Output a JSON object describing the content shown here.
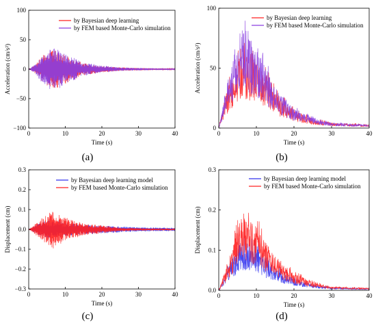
{
  "colors": {
    "red": "#ff2020",
    "blue": "#3333ee",
    "purple": "#8a3fe0"
  },
  "chart_data": [
    {
      "type": "line",
      "caption": "(a)",
      "xlabel": "Time (s)",
      "ylabel": "Acceleration (cm/s²)",
      "xlim": [
        0,
        40
      ],
      "ylim": [
        -100,
        100
      ],
      "xticks": [
        "0",
        "10",
        "20",
        "30",
        "40"
      ],
      "yticks": [
        "100",
        "50",
        "0",
        "−50",
        "−100"
      ],
      "legend_position": "top-right",
      "series": [
        {
          "name": "by Bayesian deep learning",
          "color": "red",
          "x": [
            0,
            2,
            4,
            6,
            7,
            8,
            10,
            12,
            15,
            20,
            25,
            30,
            40
          ],
          "amplitude": [
            0,
            8,
            24,
            32,
            34,
            30,
            25,
            18,
            10,
            5,
            3,
            2,
            1
          ]
        },
        {
          "name": "by FEM based Monte-Carlo simulation",
          "color": "purple",
          "x": [
            0,
            2,
            4,
            6,
            7,
            8,
            10,
            12,
            15,
            20,
            25,
            30,
            40
          ],
          "amplitude": [
            0,
            9,
            26,
            35,
            38,
            33,
            27,
            20,
            11,
            6,
            3,
            2,
            1
          ]
        }
      ]
    },
    {
      "type": "line",
      "caption": "(b)",
      "xlabel": "Time (s)",
      "ylabel": "Acceleration (cm/s²)",
      "xlim": [
        0,
        40
      ],
      "ylim": [
        0,
        100
      ],
      "xticks": [
        "0",
        "10",
        "20",
        "30",
        "40"
      ],
      "yticks": [
        "100",
        "50",
        "0"
      ],
      "legend_position": "top-right",
      "series": [
        {
          "name": "by Bayesian deep learning",
          "color": "red",
          "x": [
            0,
            2,
            4,
            6,
            8,
            10,
            12,
            14,
            16,
            20,
            25,
            30,
            40
          ],
          "y": [
            0,
            20,
            33,
            45,
            42,
            38,
            33,
            25,
            18,
            10,
            5,
            3,
            2
          ]
        },
        {
          "name": "by FEM based Monte-Carlo simulation",
          "color": "purple",
          "x": [
            0,
            2,
            4,
            6,
            8,
            10,
            12,
            14,
            16,
            20,
            25,
            30,
            40
          ],
          "y": [
            0,
            24,
            40,
            60,
            53,
            45,
            38,
            28,
            20,
            11,
            6,
            3,
            2
          ]
        }
      ]
    },
    {
      "type": "line",
      "caption": "(c)",
      "xlabel": "Time (s)",
      "ylabel": "Displacement (cm)",
      "xlim": [
        0,
        40
      ],
      "ylim": [
        -0.3,
        0.3
      ],
      "xticks": [
        "0",
        "10",
        "20",
        "30",
        "40"
      ],
      "yticks": [
        "0.3",
        "0.2",
        "0.1",
        "0.0",
        "−0.1",
        "−0.2",
        "−0.3"
      ],
      "legend_position": "top-right",
      "series": [
        {
          "name": "by Bayesian deep learning model",
          "color": "blue",
          "x": [
            0,
            2,
            4,
            6,
            8,
            10,
            12,
            15,
            20,
            25,
            30,
            40
          ],
          "amplitude": [
            0,
            0.02,
            0.04,
            0.045,
            0.04,
            0.035,
            0.03,
            0.025,
            0.02,
            0.015,
            0.01,
            0.008
          ]
        },
        {
          "name": "by FEM based Monte-Carlo simulation",
          "color": "red",
          "x": [
            0,
            2,
            4,
            6,
            7,
            8,
            10,
            12,
            15,
            20,
            25,
            30,
            40
          ],
          "amplitude": [
            0,
            0.03,
            0.06,
            0.09,
            0.1,
            0.08,
            0.06,
            0.045,
            0.03,
            0.02,
            0.01,
            0.006,
            0.004
          ]
        }
      ]
    },
    {
      "type": "line",
      "caption": "(d)",
      "xlabel": "Time (s)",
      "ylabel": "Displacement (cm)",
      "xlim": [
        0,
        40
      ],
      "ylim": [
        0,
        0.3
      ],
      "xticks": [
        "0",
        "10",
        "20",
        "30",
        "40"
      ],
      "yticks": [
        "0.3",
        "0.2",
        "0.1",
        "0.0"
      ],
      "legend_position": "top-right",
      "series": [
        {
          "name": "by Bayesian deep learning model",
          "color": "blue",
          "x": [
            0,
            2,
            4,
            6,
            8,
            10,
            12,
            14,
            16,
            18,
            20,
            25,
            30,
            40
          ],
          "y": [
            0,
            0.03,
            0.06,
            0.09,
            0.08,
            0.075,
            0.06,
            0.045,
            0.035,
            0.028,
            0.02,
            0.01,
            0.005,
            0.003
          ]
        },
        {
          "name": "by FEM based Monte-Carlo simulation",
          "color": "red",
          "x": [
            0,
            2,
            4,
            6,
            8,
            10,
            12,
            14,
            16,
            18,
            20,
            25,
            30,
            40
          ],
          "y": [
            0,
            0.04,
            0.08,
            0.14,
            0.12,
            0.11,
            0.09,
            0.065,
            0.05,
            0.04,
            0.03,
            0.014,
            0.006,
            0.004
          ]
        }
      ]
    }
  ]
}
